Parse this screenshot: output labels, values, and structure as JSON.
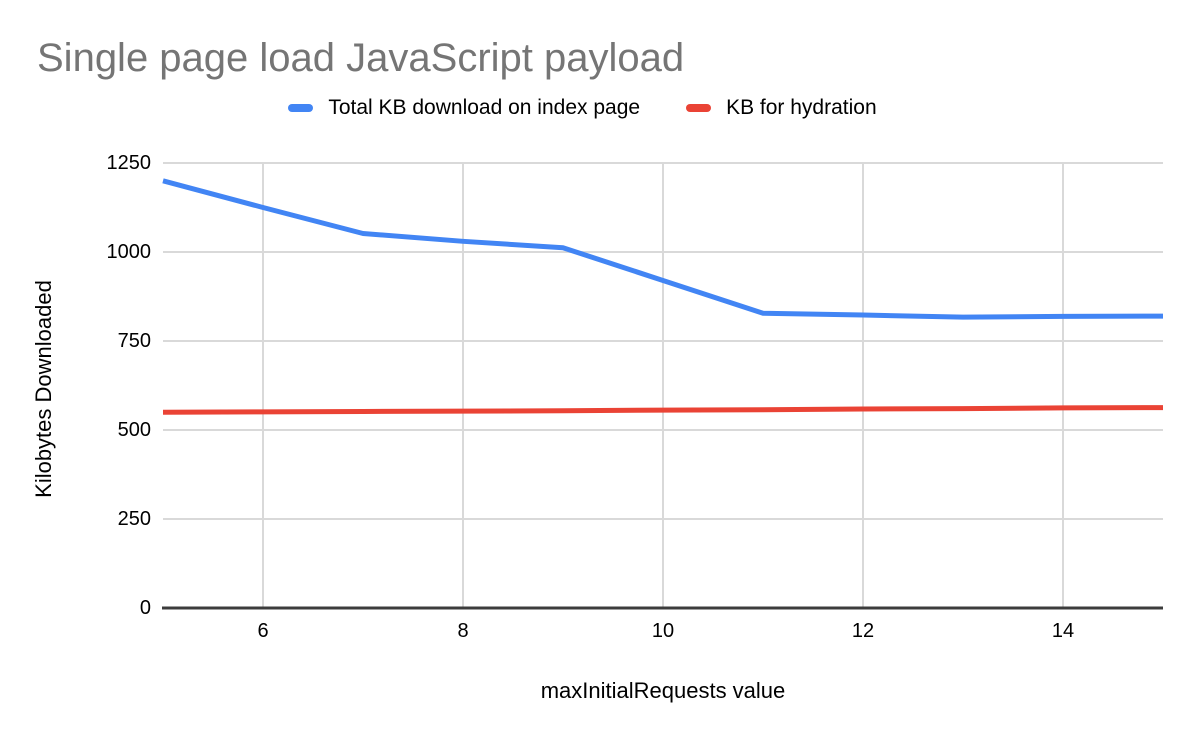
{
  "title": {
    "text": "Single page load JavaScript payload",
    "color": "#757575"
  },
  "chart_data": {
    "type": "line",
    "title": "Single page load JavaScript payload",
    "xlabel": "maxInitialRequests value",
    "ylabel": "Kilobytes Downloaded",
    "x": [
      5,
      6,
      7,
      8,
      9,
      10,
      11,
      12,
      13,
      14,
      15
    ],
    "series": [
      {
        "name": "Total KB download on index page",
        "color": "#4285f4",
        "values": [
          1200,
          1125,
          1052,
          1030,
          1012,
          920,
          828,
          823,
          817,
          819,
          820
        ]
      },
      {
        "name": "KB for hydration",
        "color": "#ea4335",
        "values": [
          550,
          551,
          552,
          553,
          554,
          556,
          557,
          559,
          560,
          562,
          563
        ]
      }
    ],
    "xlim": [
      5,
      15
    ],
    "ylim": [
      0,
      1250
    ],
    "x_ticks": [
      6,
      8,
      10,
      12,
      14
    ],
    "y_ticks": [
      0,
      250,
      500,
      750,
      1000,
      1250
    ],
    "grid": true,
    "legend_position": "top"
  },
  "colors": {
    "grid": "#d9d9d9",
    "axis": "#3c3c3c",
    "tick_text": "#000000"
  }
}
